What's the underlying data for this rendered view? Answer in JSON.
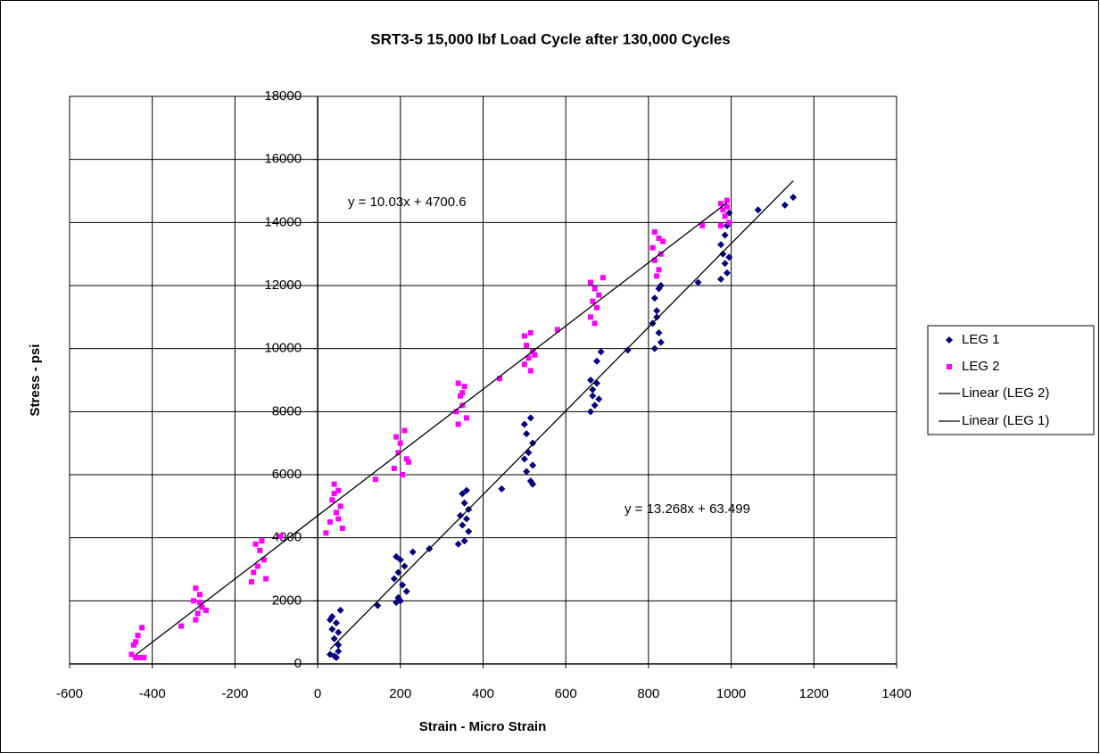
{
  "chart_data": {
    "type": "scatter",
    "title": "SRT3-5  15,000 lbf Load Cycle after 130,000 Cycles",
    "x_label": "Strain  -  Micro Strain",
    "y_label": "Stress  -  psi",
    "xlim": [
      -600,
      1400
    ],
    "xticks": [
      -600,
      -400,
      -200,
      0,
      200,
      400,
      600,
      800,
      1000,
      1200,
      1400
    ],
    "ylim": [
      0,
      18000
    ],
    "yticks": [
      0,
      2000,
      4000,
      6000,
      8000,
      10000,
      12000,
      14000,
      16000,
      18000
    ],
    "grid": true,
    "legend": "right",
    "series": [
      {
        "name": "LEG 1",
        "color": "#000080",
        "marker": "diamond",
        "x": [
          30,
          35,
          45,
          50,
          40,
          50,
          30,
          45,
          55,
          40,
          50,
          35,
          190,
          200,
          210,
          195,
          185,
          205,
          215,
          195,
          190,
          200,
          145,
          230,
          270,
          350,
          360,
          355,
          365,
          345,
          360,
          350,
          365,
          340,
          355,
          445,
          500,
          515,
          505,
          520,
          510,
          500,
          520,
          505,
          515,
          520,
          660,
          675,
          685,
          665,
          680,
          670,
          660,
          675,
          665,
          750,
          815,
          825,
          830,
          820,
          810,
          825,
          830,
          815,
          820,
          920,
          975,
          990,
          995,
          980,
          985,
          990,
          975,
          985,
          995,
          1065,
          1130,
          1150
        ],
        "values": [
          1400,
          1500,
          1300,
          1000,
          800,
          600,
          300,
          200,
          1700,
          250,
          400,
          1100,
          3400,
          3300,
          3100,
          2900,
          2700,
          2500,
          2300,
          2100,
          1950,
          2000,
          1850,
          3550,
          3650,
          5400,
          5500,
          5100,
          4900,
          4700,
          4600,
          4400,
          4200,
          3800,
          3900,
          5550,
          7600,
          7800,
          7300,
          7000,
          6700,
          6500,
          6300,
          6100,
          5800,
          5700,
          9000,
          9600,
          9900,
          8700,
          8400,
          8200,
          8000,
          8900,
          8500,
          9950,
          11600,
          11900,
          12000,
          11200,
          10800,
          10500,
          10200,
          10000,
          11000,
          12100,
          13300,
          13900,
          14300,
          13000,
          12700,
          12400,
          12200,
          13600,
          12900,
          14400,
          14550,
          14800
        ]
      },
      {
        "name": "LEG 2",
        "color": "#ff00ff",
        "marker": "square",
        "x": [
          -450,
          -440,
          -430,
          -445,
          -435,
          -425,
          -440,
          -420,
          -330,
          -295,
          -285,
          -300,
          -280,
          -290,
          -295,
          -270,
          -285,
          -150,
          -140,
          -130,
          -145,
          -155,
          -125,
          -160,
          -135,
          -90,
          20,
          40,
          50,
          35,
          55,
          45,
          30,
          60,
          50,
          40,
          140,
          190,
          210,
          200,
          195,
          215,
          185,
          205,
          220,
          340,
          355,
          345,
          350,
          335,
          360,
          340,
          350,
          440,
          500,
          515,
          505,
          520,
          510,
          500,
          515,
          525,
          580,
          660,
          670,
          665,
          675,
          660,
          670,
          680,
          690,
          815,
          825,
          810,
          830,
          815,
          825,
          820,
          835,
          930,
          975,
          990,
          980,
          985,
          995,
          975,
          990
        ],
        "values": [
          300,
          200,
          200,
          600,
          900,
          1150,
          700,
          200,
          1200,
          2400,
          2200,
          2000,
          1800,
          1600,
          1400,
          1700,
          1950,
          3800,
          3600,
          3300,
          3100,
          2900,
          2700,
          2600,
          3900,
          4050,
          4150,
          5700,
          5500,
          5200,
          5000,
          4800,
          4500,
          4300,
          4600,
          5400,
          5850,
          7200,
          7400,
          7000,
          6700,
          6500,
          6200,
          6000,
          6400,
          8900,
          8800,
          8500,
          8200,
          8000,
          7800,
          7600,
          8600,
          9050,
          10400,
          10500,
          10100,
          9900,
          9700,
          9500,
          9300,
          9800,
          10600,
          12100,
          11900,
          11500,
          11300,
          11000,
          10800,
          11700,
          12250,
          13700,
          13500,
          13200,
          13000,
          12800,
          12500,
          12300,
          13400,
          13900,
          14600,
          14700,
          14400,
          14200,
          14000,
          13900,
          14500
        ]
      }
    ],
    "trendlines": [
      {
        "name": "Linear (LEG 2)",
        "color": "#000000",
        "x": [
          -440,
          990
        ],
        "values": [
          287,
          14630
        ]
      },
      {
        "name": "Linear (LEG 1)",
        "color": "#000000",
        "x": [
          30,
          1150
        ],
        "values": [
          462,
          15321
        ]
      }
    ],
    "annotations": [
      "y = 10.03x + 4700.6",
      "y = 13.268x + 63.499"
    ]
  }
}
